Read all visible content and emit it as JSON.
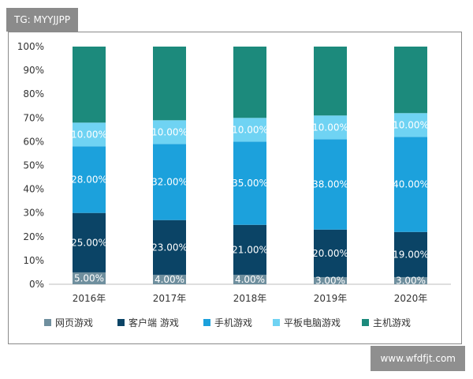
{
  "watermark_top": "TG: MYYJJPP",
  "watermark_bottom": "www.wfdfjt.com",
  "chart_data": {
    "type": "bar",
    "stacked": true,
    "percent_axis": true,
    "categories": [
      "2016年",
      "2017年",
      "2018年",
      "2019年",
      "2020年"
    ],
    "ylim": [
      0,
      100
    ],
    "yticks": [
      0,
      10,
      20,
      30,
      40,
      50,
      60,
      70,
      80,
      90,
      100
    ],
    "ytick_labels": [
      "0%",
      "10%",
      "20%",
      "30%",
      "40%",
      "50%",
      "60%",
      "70%",
      "80%",
      "90%",
      "100%"
    ],
    "grid": false,
    "legend_position": "bottom",
    "series": [
      {
        "name": "网页游戏",
        "color": "#6f8f9e",
        "values": [
          5,
          4,
          4,
          3,
          3
        ],
        "labels": [
          "5.00%",
          "4.00%",
          "4.00%",
          "3.00%",
          "3.00%"
        ]
      },
      {
        "name": "客户端 游戏",
        "color": "#0b4466",
        "values": [
          25,
          23,
          21,
          20,
          19
        ],
        "labels": [
          "25.00%",
          "23.00%",
          "21.00%",
          "20.00%",
          "19.00%"
        ]
      },
      {
        "name": "手机游戏",
        "color": "#1ca1dc",
        "values": [
          28,
          32,
          35,
          38,
          40
        ],
        "labels": [
          "28.00%",
          "32.00%",
          "35.00%",
          "38.00%",
          "40.00%"
        ]
      },
      {
        "name": "平板电脑游戏",
        "color": "#6fd3f3",
        "values": [
          10,
          10,
          10,
          10,
          10
        ],
        "labels": [
          "10.00%",
          "10.00%",
          "10.00%",
          "10.00%",
          "10.00%"
        ]
      },
      {
        "name": "主机游戏",
        "color": "#1c8a7c",
        "values": [
          32,
          31,
          30,
          29,
          28
        ],
        "labels": [
          "",
          "",
          "",
          "",
          ""
        ]
      }
    ]
  }
}
